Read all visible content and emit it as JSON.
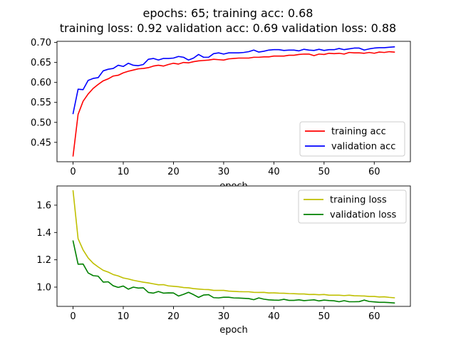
{
  "figure": {
    "title_line1": "epochs: 65; training acc: 0.68",
    "title_line2": "training loss: 0.92 validation acc: 0.69 validation loss: 0.88"
  },
  "chart_data": [
    {
      "type": "line",
      "title": "",
      "xlabel": "epoch",
      "ylabel": "",
      "xlim": [
        -3.2,
        67.2
      ],
      "ylim": [
        0.4015,
        0.7029
      ],
      "xticks": [
        0,
        10,
        20,
        30,
        40,
        50,
        60
      ],
      "yticks": [
        0.45,
        0.5,
        0.55,
        0.6,
        0.65,
        0.7
      ],
      "ytick_labels": [
        "0.45",
        "0.50",
        "0.55",
        "0.60",
        "0.65",
        "0.70"
      ],
      "legend_loc": "lower right",
      "series": [
        {
          "name": "training acc",
          "color": "#ff0000",
          "x_start": 0,
          "values": [
            0.416,
            0.52,
            0.553,
            0.571,
            0.585,
            0.595,
            0.604,
            0.609,
            0.616,
            0.618,
            0.624,
            0.628,
            0.631,
            0.634,
            0.635,
            0.637,
            0.641,
            0.643,
            0.641,
            0.645,
            0.648,
            0.646,
            0.65,
            0.649,
            0.652,
            0.654,
            0.655,
            0.656,
            0.658,
            0.657,
            0.656,
            0.659,
            0.66,
            0.661,
            0.661,
            0.661,
            0.663,
            0.663,
            0.664,
            0.664,
            0.666,
            0.666,
            0.666,
            0.668,
            0.668,
            0.67,
            0.671,
            0.671,
            0.667,
            0.671,
            0.67,
            0.673,
            0.672,
            0.673,
            0.671,
            0.675,
            0.674,
            0.674,
            0.673,
            0.675,
            0.673,
            0.676,
            0.675,
            0.677,
            0.676
          ]
        },
        {
          "name": "validation acc",
          "color": "#0000ff",
          "x_start": 0,
          "values": [
            0.522,
            0.583,
            0.582,
            0.605,
            0.61,
            0.612,
            0.629,
            0.633,
            0.635,
            0.643,
            0.64,
            0.648,
            0.643,
            0.642,
            0.645,
            0.658,
            0.66,
            0.656,
            0.66,
            0.66,
            0.661,
            0.665,
            0.663,
            0.656,
            0.661,
            0.67,
            0.663,
            0.663,
            0.672,
            0.674,
            0.671,
            0.674,
            0.674,
            0.674,
            0.675,
            0.677,
            0.681,
            0.676,
            0.678,
            0.681,
            0.682,
            0.682,
            0.68,
            0.681,
            0.681,
            0.679,
            0.683,
            0.681,
            0.68,
            0.683,
            0.68,
            0.682,
            0.682,
            0.685,
            0.682,
            0.684,
            0.686,
            0.686,
            0.681,
            0.684,
            0.686,
            0.687,
            0.687,
            0.688,
            0.689
          ]
        }
      ]
    },
    {
      "type": "line",
      "title": "",
      "xlabel": "epoch",
      "ylabel": "",
      "xlim": [
        -3.2,
        67.2
      ],
      "ylim": [
        0.8591,
        1.7405
      ],
      "xticks": [
        0,
        10,
        20,
        30,
        40,
        50,
        60
      ],
      "yticks": [
        1.0,
        1.2,
        1.4,
        1.6
      ],
      "ytick_labels": [
        "1.0",
        "1.2",
        "1.4",
        "1.6"
      ],
      "legend_loc": "upper right",
      "series": [
        {
          "name": "training loss",
          "color": "#bfbf00",
          "x_start": 0,
          "values": [
            1.705,
            1.355,
            1.272,
            1.214,
            1.175,
            1.148,
            1.123,
            1.11,
            1.092,
            1.082,
            1.067,
            1.06,
            1.05,
            1.043,
            1.036,
            1.031,
            1.024,
            1.017,
            1.018,
            1.009,
            1.006,
            1.003,
            0.997,
            0.995,
            0.989,
            0.986,
            0.983,
            0.982,
            0.976,
            0.976,
            0.976,
            0.971,
            0.969,
            0.967,
            0.966,
            0.966,
            0.962,
            0.961,
            0.962,
            0.957,
            0.958,
            0.956,
            0.955,
            0.953,
            0.952,
            0.95,
            0.95,
            0.946,
            0.947,
            0.944,
            0.946,
            0.941,
            0.941,
            0.941,
            0.938,
            0.941,
            0.937,
            0.936,
            0.935,
            0.932,
            0.932,
            0.928,
            0.929,
            0.925,
            0.922
          ]
        },
        {
          "name": "validation loss",
          "color": "#008000",
          "x_start": 0,
          "values": [
            1.338,
            1.168,
            1.169,
            1.104,
            1.084,
            1.08,
            1.037,
            1.039,
            1.01,
            0.998,
            1.008,
            0.985,
            1.0,
            0.993,
            0.995,
            0.961,
            0.956,
            0.968,
            0.956,
            0.958,
            0.957,
            0.935,
            0.947,
            0.962,
            0.945,
            0.925,
            0.942,
            0.945,
            0.923,
            0.921,
            0.926,
            0.926,
            0.921,
            0.92,
            0.918,
            0.916,
            0.908,
            0.921,
            0.912,
            0.907,
            0.905,
            0.904,
            0.911,
            0.903,
            0.903,
            0.907,
            0.901,
            0.904,
            0.907,
            0.899,
            0.905,
            0.902,
            0.9,
            0.893,
            0.901,
            0.893,
            0.893,
            0.894,
            0.905,
            0.895,
            0.892,
            0.889,
            0.889,
            0.887,
            0.884
          ]
        }
      ]
    }
  ]
}
